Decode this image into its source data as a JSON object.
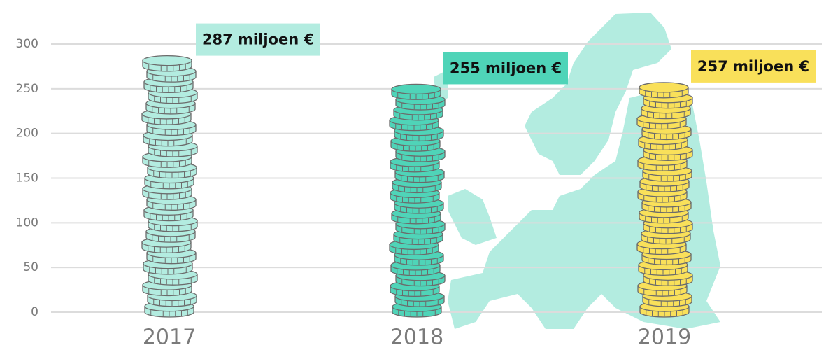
{
  "chart_data": {
    "type": "bar",
    "categories": [
      "2017",
      "2018",
      "2019"
    ],
    "values": [
      287,
      255,
      257
    ],
    "value_labels": [
      "287 miljoen €",
      "255 miljoen €",
      "257 miljoen €"
    ],
    "colors": [
      "#b3ece0",
      "#4fd4b8",
      "#f9e05a"
    ],
    "ylim": [
      0,
      300
    ],
    "yticks": [
      0,
      50,
      100,
      150,
      200,
      250,
      300
    ],
    "grid": true
  }
}
